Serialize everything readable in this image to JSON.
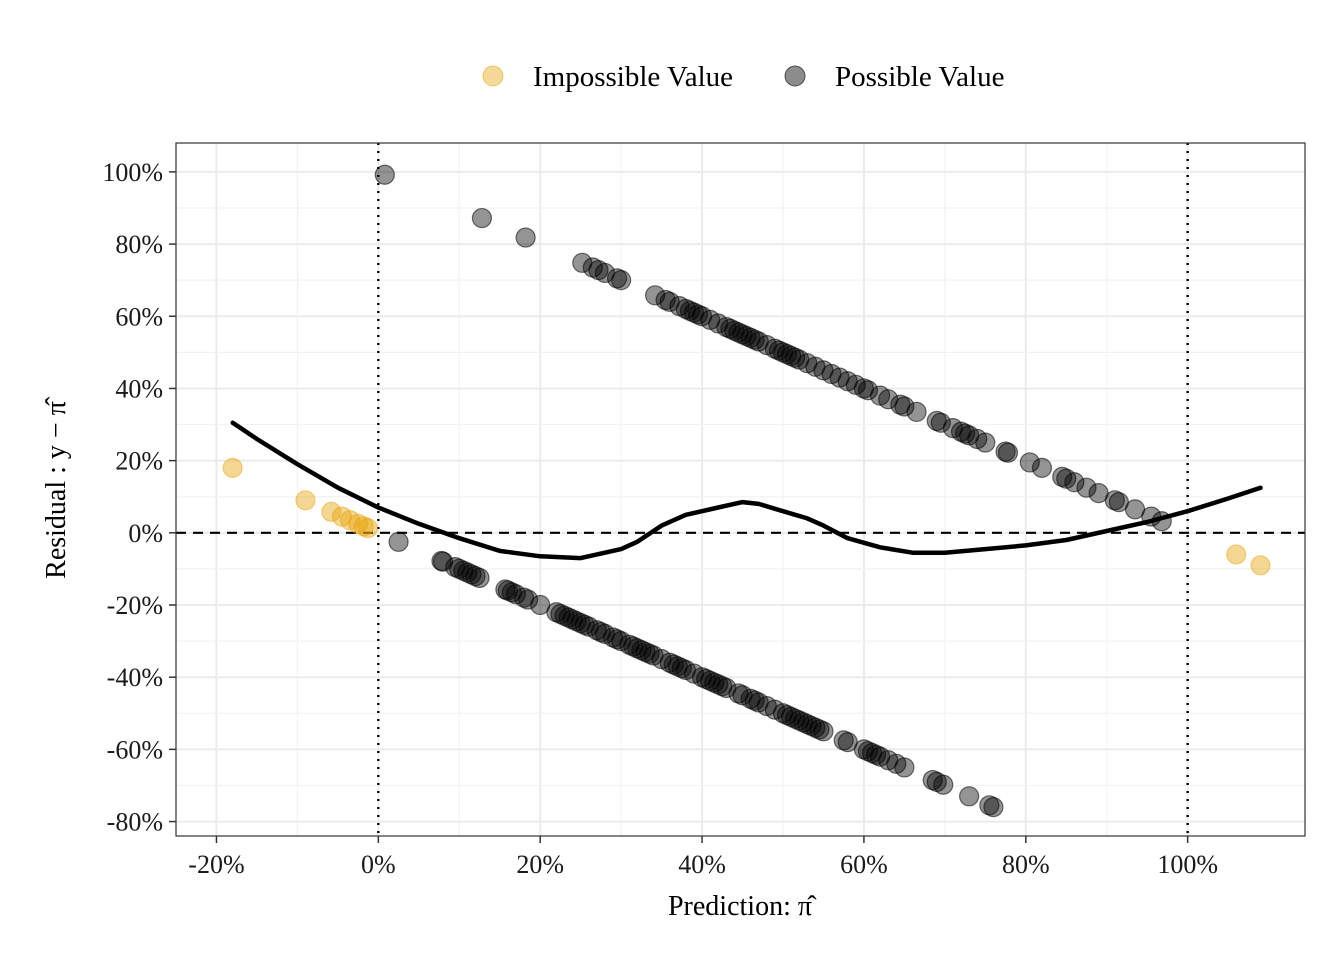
{
  "chart_data": {
    "type": "scatter",
    "xlabel": "Prediction: π̂",
    "ylabel": "Residual : y − π̂",
    "xlim": [
      -0.25,
      1.145
    ],
    "ylim": [
      -0.84,
      1.08
    ],
    "x_ticks": [
      -0.2,
      0,
      0.2,
      0.4,
      0.6,
      0.8,
      1.0
    ],
    "x_tick_labels": [
      "-20%",
      "0%",
      "20%",
      "40%",
      "60%",
      "80%",
      "100%"
    ],
    "y_ticks": [
      -0.8,
      -0.6,
      -0.4,
      -0.2,
      0,
      0.2,
      0.4,
      0.6,
      0.8,
      1.0
    ],
    "y_tick_labels": [
      "-80%",
      "-60%",
      "-40%",
      "-20%",
      "0%",
      "20%",
      "40%",
      "60%",
      "80%",
      "100%"
    ],
    "reference_lines": {
      "vertical_dotted": [
        0,
        1
      ],
      "horizontal_dashed": [
        0
      ]
    },
    "legend": {
      "position": "top",
      "entries": [
        {
          "name": "Impossible Value",
          "color": "#E69F00"
        },
        {
          "name": "Possible Value",
          "color": "#000000"
        }
      ]
    },
    "series": [
      {
        "name": "Impossible Value",
        "color": "#E69F00",
        "x": [
          -0.18,
          -0.09,
          -0.058,
          -0.045,
          -0.035,
          -0.025,
          -0.018,
          -0.013,
          1.06,
          1.09
        ],
        "y": [
          0.18,
          0.09,
          0.058,
          0.045,
          0.035,
          0.025,
          0.018,
          0.013,
          -0.06,
          -0.09
        ]
      },
      {
        "name": "Possible Value",
        "color": "#000000",
        "upper_band_x": [
          0.008,
          0.128,
          0.182,
          0.252,
          0.265,
          0.272,
          0.28,
          0.295,
          0.3,
          0.342,
          0.355,
          0.36,
          0.372,
          0.38,
          0.385,
          0.39,
          0.395,
          0.4,
          0.41,
          0.42,
          0.43,
          0.435,
          0.44,
          0.445,
          0.45,
          0.455,
          0.46,
          0.465,
          0.47,
          0.48,
          0.49,
          0.495,
          0.5,
          0.505,
          0.51,
          0.515,
          0.52,
          0.53,
          0.54,
          0.55,
          0.56,
          0.57,
          0.58,
          0.59,
          0.6,
          0.605,
          0.62,
          0.63,
          0.645,
          0.65,
          0.665,
          0.69,
          0.695,
          0.71,
          0.72,
          0.725,
          0.73,
          0.74,
          0.75,
          0.775,
          0.778,
          0.805,
          0.82,
          0.845,
          0.85,
          0.86,
          0.875,
          0.89,
          0.91,
          0.915,
          0.935,
          0.955,
          0.968
        ],
        "upper_band_y": [
          0.992,
          0.872,
          0.818,
          0.748,
          0.735,
          0.728,
          0.72,
          0.705,
          0.7,
          0.658,
          0.645,
          0.64,
          0.628,
          0.62,
          0.615,
          0.61,
          0.605,
          0.6,
          0.59,
          0.58,
          0.57,
          0.565,
          0.56,
          0.555,
          0.55,
          0.545,
          0.54,
          0.535,
          0.53,
          0.52,
          0.51,
          0.505,
          0.5,
          0.495,
          0.49,
          0.485,
          0.48,
          0.47,
          0.46,
          0.45,
          0.44,
          0.43,
          0.42,
          0.41,
          0.4,
          0.395,
          0.38,
          0.37,
          0.355,
          0.35,
          0.335,
          0.31,
          0.305,
          0.29,
          0.28,
          0.275,
          0.27,
          0.26,
          0.25,
          0.225,
          0.222,
          0.195,
          0.18,
          0.155,
          0.15,
          0.14,
          0.125,
          0.11,
          0.09,
          0.085,
          0.065,
          0.045,
          0.032
        ],
        "lower_band_x": [
          0.025,
          0.078,
          0.08,
          0.095,
          0.1,
          0.105,
          0.11,
          0.115,
          0.12,
          0.125,
          0.157,
          0.16,
          0.165,
          0.17,
          0.18,
          0.185,
          0.2,
          0.22,
          0.225,
          0.23,
          0.235,
          0.24,
          0.245,
          0.25,
          0.255,
          0.26,
          0.27,
          0.275,
          0.28,
          0.29,
          0.295,
          0.3,
          0.31,
          0.315,
          0.32,
          0.325,
          0.33,
          0.335,
          0.34,
          0.35,
          0.36,
          0.365,
          0.37,
          0.375,
          0.38,
          0.39,
          0.4,
          0.405,
          0.41,
          0.415,
          0.42,
          0.425,
          0.43,
          0.445,
          0.45,
          0.46,
          0.465,
          0.47,
          0.48,
          0.49,
          0.5,
          0.505,
          0.51,
          0.515,
          0.52,
          0.525,
          0.53,
          0.535,
          0.54,
          0.545,
          0.55,
          0.575,
          0.58,
          0.6,
          0.605,
          0.61,
          0.615,
          0.62,
          0.63,
          0.64,
          0.65,
          0.685,
          0.69,
          0.698,
          0.73,
          0.755,
          0.76
        ],
        "lower_band_y": [
          -0.025,
          -0.078,
          -0.08,
          -0.095,
          -0.1,
          -0.105,
          -0.11,
          -0.115,
          -0.12,
          -0.125,
          -0.157,
          -0.16,
          -0.165,
          -0.17,
          -0.18,
          -0.185,
          -0.2,
          -0.22,
          -0.225,
          -0.23,
          -0.235,
          -0.24,
          -0.245,
          -0.25,
          -0.255,
          -0.26,
          -0.27,
          -0.275,
          -0.28,
          -0.29,
          -0.295,
          -0.3,
          -0.31,
          -0.315,
          -0.32,
          -0.325,
          -0.33,
          -0.335,
          -0.34,
          -0.35,
          -0.36,
          -0.365,
          -0.37,
          -0.375,
          -0.38,
          -0.39,
          -0.4,
          -0.405,
          -0.41,
          -0.415,
          -0.42,
          -0.425,
          -0.43,
          -0.445,
          -0.45,
          -0.46,
          -0.465,
          -0.47,
          -0.48,
          -0.49,
          -0.5,
          -0.505,
          -0.51,
          -0.515,
          -0.52,
          -0.525,
          -0.53,
          -0.535,
          -0.54,
          -0.545,
          -0.55,
          -0.575,
          -0.58,
          -0.6,
          -0.605,
          -0.61,
          -0.615,
          -0.62,
          -0.63,
          -0.64,
          -0.65,
          -0.685,
          -0.69,
          -0.698,
          -0.73,
          -0.755,
          -0.76
        ]
      }
    ],
    "smooth_curve": {
      "x": [
        -0.18,
        -0.15,
        -0.1,
        -0.05,
        0,
        0.05,
        0.1,
        0.15,
        0.2,
        0.25,
        0.3,
        0.32,
        0.35,
        0.38,
        0.42,
        0.45,
        0.47,
        0.5,
        0.53,
        0.55,
        0.58,
        0.62,
        0.66,
        0.7,
        0.75,
        0.8,
        0.85,
        0.9,
        0.95,
        1.0,
        1.05,
        1.09
      ],
      "y": [
        0.305,
        0.26,
        0.19,
        0.125,
        0.07,
        0.025,
        -0.015,
        -0.05,
        -0.065,
        -0.07,
        -0.045,
        -0.025,
        0.02,
        0.05,
        0.07,
        0.085,
        0.08,
        0.06,
        0.04,
        0.02,
        -0.015,
        -0.04,
        -0.055,
        -0.055,
        -0.045,
        -0.035,
        -0.02,
        0.005,
        0.03,
        0.06,
        0.095,
        0.125
      ]
    }
  }
}
